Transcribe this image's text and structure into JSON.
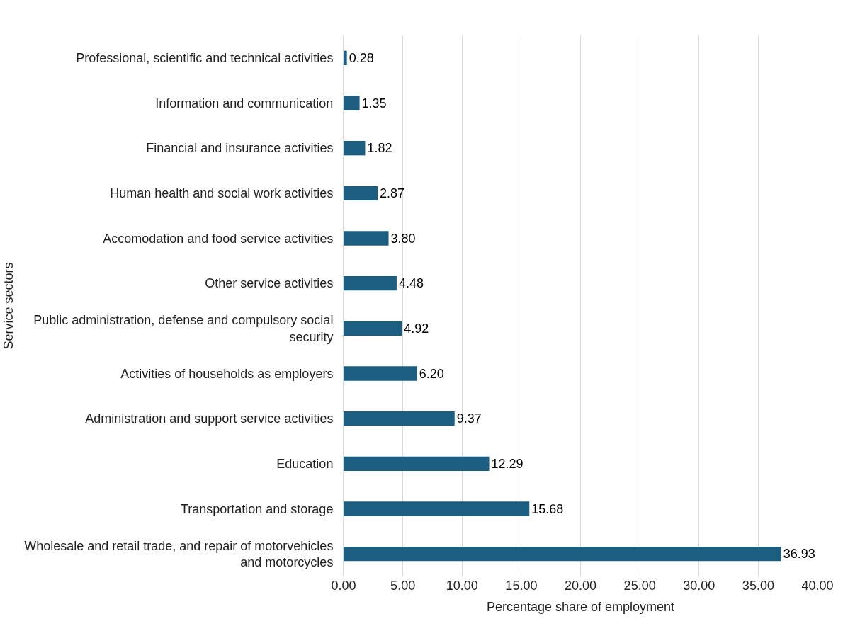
{
  "chart_data": {
    "type": "bar",
    "orientation": "horizontal",
    "xlabel": "Percentage share of employment",
    "ylabel": "Service sectors",
    "categories": [
      "Professional, scientific and technical activities",
      "Information and communication",
      "Financial and insurance activities",
      "Human health and social work activities",
      "Accomodation and food service activities",
      "Other service activities",
      "Public administration, defense and compulsory social security",
      "Activities of households as employers",
      "Administration and support service activities",
      "Education",
      "Transportation and storage",
      "Wholesale and retail trade, and repair of motorvehicles and motorcycles"
    ],
    "values": [
      0.28,
      1.35,
      1.82,
      2.87,
      3.8,
      4.48,
      4.92,
      6.2,
      9.37,
      12.29,
      15.68,
      36.93
    ],
    "value_labels": [
      "0.28",
      "1.35",
      "1.82",
      "2.87",
      "3.80",
      "4.48",
      "4.92",
      "6.20",
      "9.37",
      "12.29",
      "15.68",
      "36.93"
    ],
    "color": "#1b5e80",
    "xlim": [
      0,
      40
    ],
    "xticks": [
      {
        "value": 0,
        "label": "0.00"
      },
      {
        "value": 5,
        "label": "5.00"
      },
      {
        "value": 10,
        "label": "10.00"
      },
      {
        "value": 15,
        "label": "15.00"
      },
      {
        "value": 20,
        "label": "20.00"
      },
      {
        "value": 25,
        "label": "25.00"
      },
      {
        "value": 30,
        "label": "30.00"
      },
      {
        "value": 35,
        "label": "35.00"
      },
      {
        "value": 40,
        "label": "40.00"
      }
    ],
    "grid": "x"
  }
}
